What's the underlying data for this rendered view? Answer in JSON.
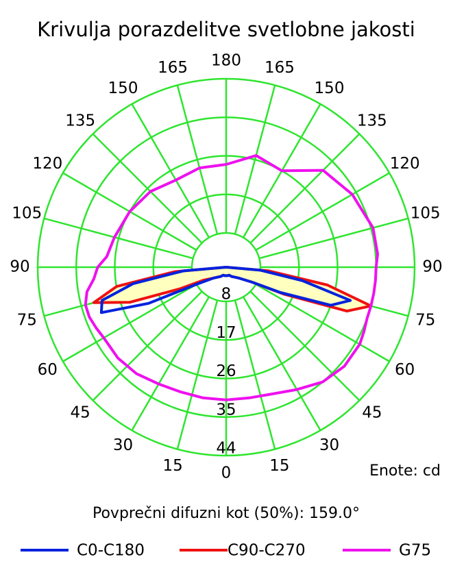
{
  "chart_data": {
    "type": "polar",
    "title": "Krivulja porazdelitve svetlobne jakosti",
    "unit_label": "Enote: cd",
    "note": "Povprečni difuzni kot (50%): 159.0°",
    "rlim": [
      0,
      44
    ],
    "rticks": [
      8,
      17,
      26,
      35,
      44
    ],
    "angle_ticks": [
      0,
      15,
      30,
      45,
      60,
      75,
      90,
      105,
      120,
      135,
      150,
      165,
      180
    ],
    "grid": true,
    "grid_color": "#2ee52e",
    "x": [
      -180,
      -165,
      -150,
      -135,
      -120,
      -105,
      -95,
      -90,
      -85,
      -80,
      -75,
      -70,
      -65,
      -60,
      -50,
      -40,
      -30,
      -20,
      -10,
      0,
      10,
      20,
      30,
      40,
      50,
      60,
      65,
      70,
      75,
      80,
      85,
      90,
      95,
      105,
      120,
      135,
      150,
      165,
      180
    ],
    "series": [
      {
        "name": "C0-C180",
        "color": "#0022dd",
        "values": [
          0,
          0,
          0,
          0,
          0,
          0,
          0,
          0,
          10,
          22,
          30,
          31,
          20,
          8,
          4,
          3,
          2.5,
          2,
          2,
          2,
          2,
          2,
          2.5,
          3,
          4,
          7,
          14,
          26,
          30,
          18,
          8,
          0,
          0,
          0,
          0,
          0,
          0,
          0,
          0
        ]
      },
      {
        "name": "C90-C270",
        "color": "#ee1111",
        "fill": "#ffffc0",
        "values": [
          0,
          0,
          0,
          0,
          0,
          0,
          0,
          0,
          12,
          26,
          32,
          24,
          12,
          6,
          4,
          3,
          2.5,
          2,
          2,
          2,
          2,
          2,
          2.5,
          3,
          4,
          7,
          15,
          30,
          35,
          24,
          10,
          0,
          0,
          0,
          0,
          0,
          0,
          0,
          0
        ]
      },
      {
        "name": "G75",
        "color": "#ee11ee",
        "values": [
          24,
          24,
          23.5,
          25,
          26,
          27,
          28,
          30,
          31,
          33,
          34,
          34,
          33.5,
          33,
          33,
          32.5,
          31.5,
          31,
          31,
          31,
          31,
          31.5,
          33,
          35,
          36,
          36,
          35.5,
          35,
          35,
          35,
          35,
          35,
          35.5,
          35.5,
          34,
          32,
          26,
          27,
          24
        ]
      }
    ]
  }
}
